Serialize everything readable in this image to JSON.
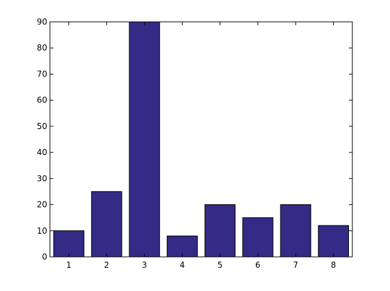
{
  "chart_data": {
    "type": "bar",
    "categories": [
      "1",
      "2",
      "3",
      "4",
      "5",
      "6",
      "7",
      "8"
    ],
    "values": [
      10,
      25,
      90,
      8,
      20,
      15,
      20,
      12
    ],
    "ylim": [
      0,
      90
    ],
    "yticks": [
      0,
      10,
      20,
      30,
      40,
      50,
      60,
      70,
      80,
      90
    ],
    "grid": false,
    "colors": {
      "bar_fill": "#332b86",
      "bar_edge": "#000000",
      "axis": "#000000",
      "background": "#ffffff"
    }
  }
}
